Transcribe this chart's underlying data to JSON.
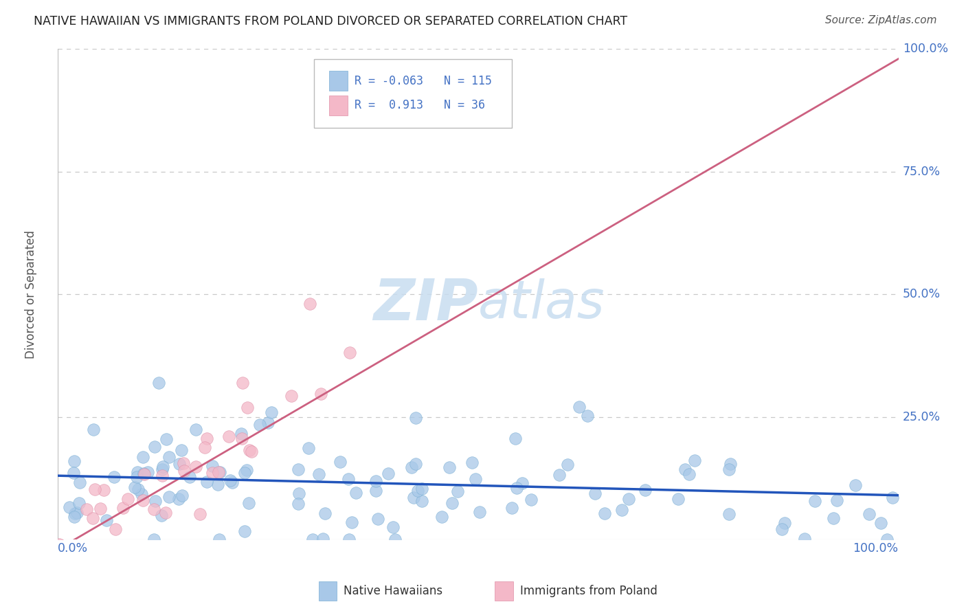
{
  "title": "NATIVE HAWAIIAN VS IMMIGRANTS FROM POLAND DIVORCED OR SEPARATED CORRELATION CHART",
  "source": "Source: ZipAtlas.com",
  "ylabel": "Divorced or Separated",
  "r_blue": -0.063,
  "n_blue": 115,
  "r_pink": 0.913,
  "n_pink": 36,
  "blue_color": "#a8c8e8",
  "blue_edge": "#7bafd4",
  "pink_color": "#f4b8c8",
  "pink_edge": "#e090a8",
  "trend_blue": "#2255bb",
  "trend_pink": "#cc6080",
  "background": "#ffffff",
  "grid_color": "#c8c8c8",
  "label_color": "#4472c4",
  "text_color": "#555555",
  "watermark_color": "#c8ddf0",
  "ytick_labels": [
    "25.0%",
    "50.0%",
    "75.0%",
    "100.0%"
  ],
  "ytick_vals": [
    0.25,
    0.5,
    0.75,
    1.0
  ],
  "grid_vals": [
    0.25,
    0.5,
    0.75,
    1.0
  ],
  "blue_trend_slope": -0.04,
  "blue_trend_intercept": 0.13,
  "pink_trend_slope": 1.0,
  "pink_trend_intercept": -0.02
}
